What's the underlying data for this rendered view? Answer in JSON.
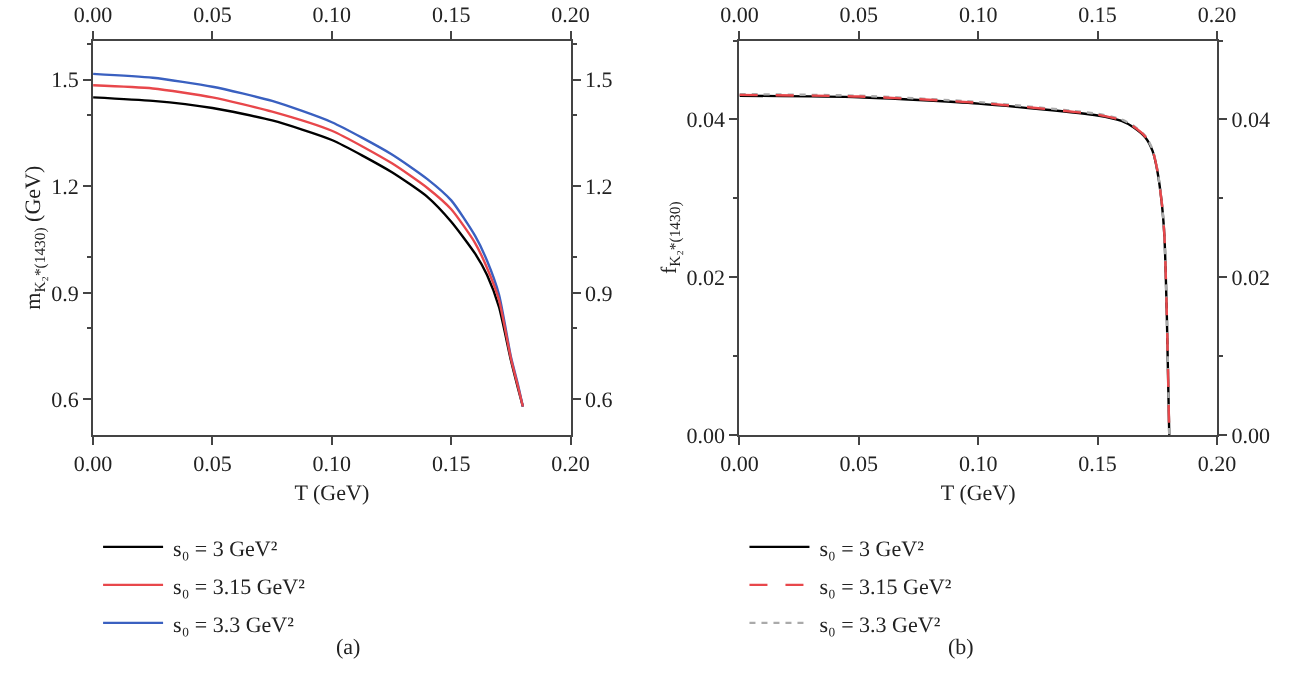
{
  "chart_data": [
    {
      "type": "line",
      "xlabel": "T (GeV)",
      "ylabel": "m$_{K₂*(1430)}$ (GeV)",
      "annotations": [
        "(a)"
      ],
      "legend": "bottom",
      "grid": false,
      "marker": "none",
      "x": [
        0,
        0.025,
        0.05,
        0.075,
        0.1,
        0.125,
        0.14,
        0.15,
        0.16,
        0.165,
        0.17,
        0.175,
        0.178,
        0.18
      ],
      "xlim": [
        0,
        0.2
      ],
      "xticks": [
        {
          "value": 0,
          "label": "0.00"
        },
        {
          "value": 0.05,
          "label": "0.05"
        },
        {
          "value": 0.1,
          "label": "0.10"
        },
        {
          "value": 0.15,
          "label": "0.15"
        },
        {
          "value": 0.2,
          "label": "0.20"
        }
      ],
      "x2lim": [
        0,
        0.2
      ],
      "x2ticks": [
        {
          "value": 0,
          "label": "0.00"
        },
        {
          "value": 0.05,
          "label": "0.05"
        },
        {
          "value": 0.1,
          "label": "0.10"
        },
        {
          "value": 0.15,
          "label": "0.15"
        },
        {
          "value": 0.2,
          "label": "0.20"
        }
      ],
      "ylim": [
        0.5,
        1.61
      ],
      "yticks": [
        0.6,
        0.9,
        1.2,
        1.5
      ],
      "y2lim": [
        0.5,
        1.61
      ],
      "y2ticks": [
        0.6,
        0.9,
        1.2,
        1.5
      ],
      "series": [
        {
          "name": "s₀ = 3 GeV²",
          "color": "#000000",
          "line_style": "solid",
          "values": [
            1.45,
            1.44,
            1.42,
            1.385,
            1.33,
            1.24,
            1.17,
            1.1,
            1.01,
            0.95,
            0.86,
            0.71,
            0.63,
            0.58
          ]
        },
        {
          "name": "s₀ = 3.15 GeV²",
          "color": "#e8474b",
          "line_style": "solid",
          "values": [
            1.484,
            1.475,
            1.45,
            1.41,
            1.356,
            1.265,
            1.195,
            1.135,
            1.04,
            0.97,
            0.88,
            0.715,
            0.635,
            0.58
          ]
        },
        {
          "name": "s₀ = 3.3 GeV²",
          "color": "#3a60c0",
          "line_style": "solid",
          "values": [
            1.516,
            1.505,
            1.48,
            1.44,
            1.38,
            1.29,
            1.22,
            1.16,
            1.06,
            0.99,
            0.895,
            0.72,
            0.64,
            0.58
          ]
        }
      ]
    },
    {
      "type": "line",
      "xlabel": "T (GeV)",
      "ylabel": "f$_{K₂*(1430)}$",
      "annotations": [
        "(b)"
      ],
      "legend": "bottom",
      "grid": false,
      "marker": "none",
      "x": [
        0,
        0.05,
        0.1,
        0.15,
        0.16,
        0.165,
        0.17,
        0.173,
        0.175,
        0.177,
        0.178,
        0.179,
        0.18
      ],
      "xlim": [
        0,
        0.2
      ],
      "xticks": [
        {
          "value": 0,
          "label": "0.00"
        },
        {
          "value": 0.05,
          "label": "0.05"
        },
        {
          "value": 0.1,
          "label": "0.10"
        },
        {
          "value": 0.15,
          "label": "0.15"
        },
        {
          "value": 0.2,
          "label": "0.20"
        }
      ],
      "x2lim": [
        0,
        0.2
      ],
      "x2ticks": [
        {
          "value": 0,
          "label": "0.00"
        },
        {
          "value": 0.05,
          "label": "0.05"
        },
        {
          "value": 0.1,
          "label": "0.10"
        },
        {
          "value": 0.15,
          "label": "0.15"
        },
        {
          "value": 0.2,
          "label": "0.20"
        }
      ],
      "ylim": [
        0,
        0.05
      ],
      "yticks": [
        {
          "value": 0,
          "label": "0.00"
        },
        {
          "value": 0.02,
          "label": "0.02"
        },
        {
          "value": 0.04,
          "label": "0.04"
        }
      ],
      "y2lim": [
        0,
        0.05
      ],
      "y2ticks": [
        {
          "value": 0,
          "label": "0.00"
        },
        {
          "value": 0.02,
          "label": "0.02"
        },
        {
          "value": 0.04,
          "label": "0.04"
        }
      ],
      "series": [
        {
          "name": "s₀ = 3 GeV²",
          "color": "#000000",
          "line_style": "solid",
          "values": [
            0.043,
            0.0428,
            0.042,
            0.0405,
            0.0398,
            0.039,
            0.0377,
            0.036,
            0.0335,
            0.029,
            0.025,
            0.015,
            0.0
          ]
        },
        {
          "name": "s₀ = 3.15 GeV²",
          "color": "#e8474b",
          "line_style": "dashed",
          "values": [
            0.0431,
            0.0429,
            0.0421,
            0.0406,
            0.0399,
            0.0391,
            0.0378,
            0.0361,
            0.0336,
            0.0291,
            0.0251,
            0.0151,
            0.0
          ]
        },
        {
          "name": "s₀ = 3.3 GeV²",
          "color": "#aaaaaa",
          "line_style": "dotted",
          "values": [
            0.0432,
            0.043,
            0.0422,
            0.0407,
            0.04,
            0.0392,
            0.0379,
            0.0362,
            0.0337,
            0.0292,
            0.0252,
            0.0152,
            0.0
          ]
        }
      ]
    }
  ]
}
